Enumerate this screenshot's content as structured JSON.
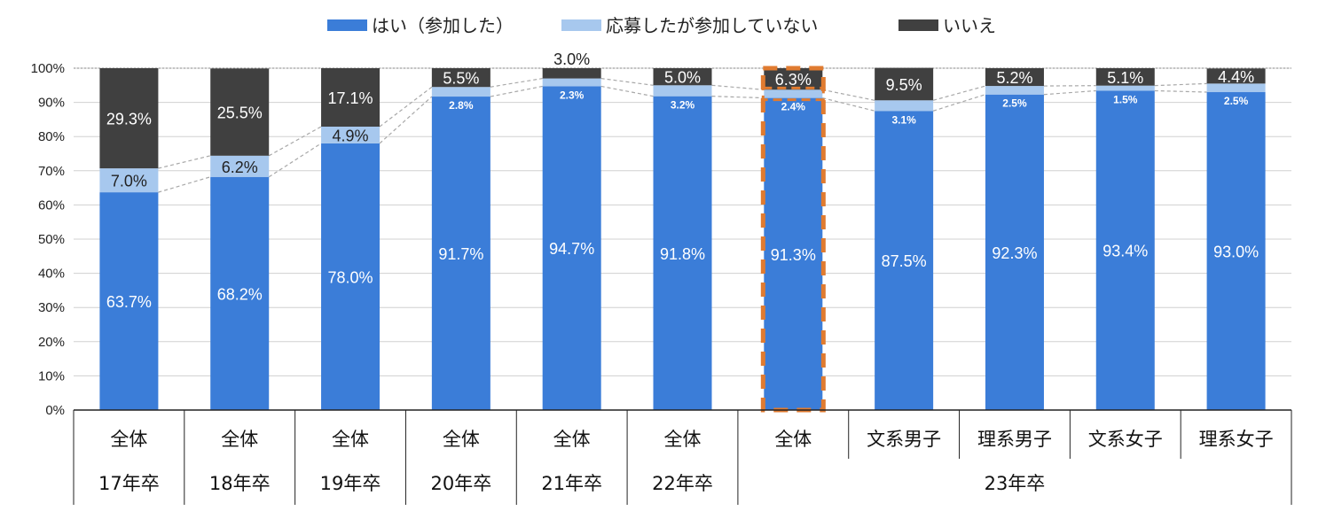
{
  "chart_data": {
    "type": "bar",
    "stacked": true,
    "title": "",
    "xlabel": "",
    "ylabel": "",
    "ylim": [
      0,
      100
    ],
    "yticks": [
      "0%",
      "10%",
      "20%",
      "30%",
      "40%",
      "50%",
      "60%",
      "70%",
      "80%",
      "90%",
      "100%"
    ],
    "grid": true,
    "legend_position": "top",
    "categories": [
      "全体",
      "全体",
      "全体",
      "全体",
      "全体",
      "全体",
      "全体",
      "文系男子",
      "理系男子",
      "文系女子",
      "理系女子"
    ],
    "groups": [
      {
        "label": "17年卒",
        "span": [
          0,
          0
        ]
      },
      {
        "label": "18年卒",
        "span": [
          1,
          1
        ]
      },
      {
        "label": "19年卒",
        "span": [
          2,
          2
        ]
      },
      {
        "label": "20年卒",
        "span": [
          3,
          3
        ]
      },
      {
        "label": "21年卒",
        "span": [
          4,
          4
        ]
      },
      {
        "label": "22年卒",
        "span": [
          5,
          5
        ]
      },
      {
        "label": "23年卒",
        "span": [
          6,
          10
        ]
      }
    ],
    "series": [
      {
        "name": "はい（参加した）",
        "color": "#3b7dd8",
        "label_color": "#ffffff",
        "values": [
          63.7,
          68.2,
          78.0,
          91.7,
          94.7,
          91.8,
          91.3,
          87.5,
          92.3,
          93.4,
          93.0
        ],
        "labels": [
          "63.7%",
          "68.2%",
          "78.0%",
          "91.7%",
          "94.7%",
          "91.8%",
          "91.3%",
          "87.5%",
          "92.3%",
          "93.4%",
          "93.0%"
        ]
      },
      {
        "name": "応募したが参加していない",
        "color": "#a7c8ee",
        "label_color": "#222222",
        "values": [
          7.0,
          6.2,
          4.9,
          2.8,
          2.3,
          3.2,
          2.4,
          3.1,
          2.5,
          1.5,
          2.5
        ],
        "labels": [
          "7.0%",
          "6.2%",
          "4.9%",
          "2.8%",
          "2.3%",
          "3.2%",
          "2.4%",
          "3.1%",
          "2.5%",
          "1.5%",
          "2.5%"
        ]
      },
      {
        "name": "いいえ",
        "color": "#404040",
        "label_color": "#ffffff",
        "values": [
          29.3,
          25.5,
          17.1,
          5.5,
          3.0,
          5.0,
          6.3,
          9.5,
          5.2,
          5.1,
          4.4
        ],
        "labels": [
          "29.3%",
          "25.5%",
          "17.1%",
          "5.5%",
          "3.0%",
          "5.0%",
          "6.3%",
          "9.5%",
          "5.2%",
          "5.1%",
          "4.4%"
        ]
      }
    ],
    "highlight_index": 6,
    "highlight_color": "#e07b30"
  }
}
